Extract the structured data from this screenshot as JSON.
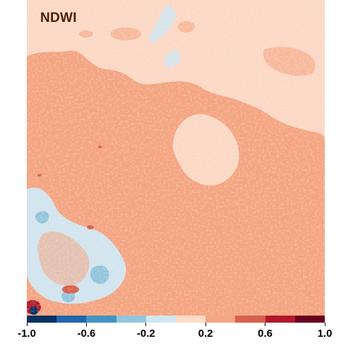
{
  "map": {
    "title": "NDWI",
    "colors": {
      "base_light": "#fcd9c6",
      "base_mid": "#f4a582",
      "mid_light": "#f7b99c",
      "pale_blue": "#d1e5f0",
      "light_blue": "#92c5de",
      "mid_red": "#d6604d",
      "dark_red": "#b2182b",
      "navy": "#053061"
    }
  },
  "legend": {
    "min": -1.0,
    "max": 1.0,
    "colors": [
      "#053061",
      "#2166ac",
      "#4393c3",
      "#92c5de",
      "#d1e5f0",
      "#fddbc7",
      "#f4a582",
      "#d6604d",
      "#b2182b",
      "#67001f"
    ],
    "ticks": [
      "-1.0",
      "-0.6",
      "-0.2",
      "0.2",
      "0.6",
      "1.0"
    ]
  }
}
